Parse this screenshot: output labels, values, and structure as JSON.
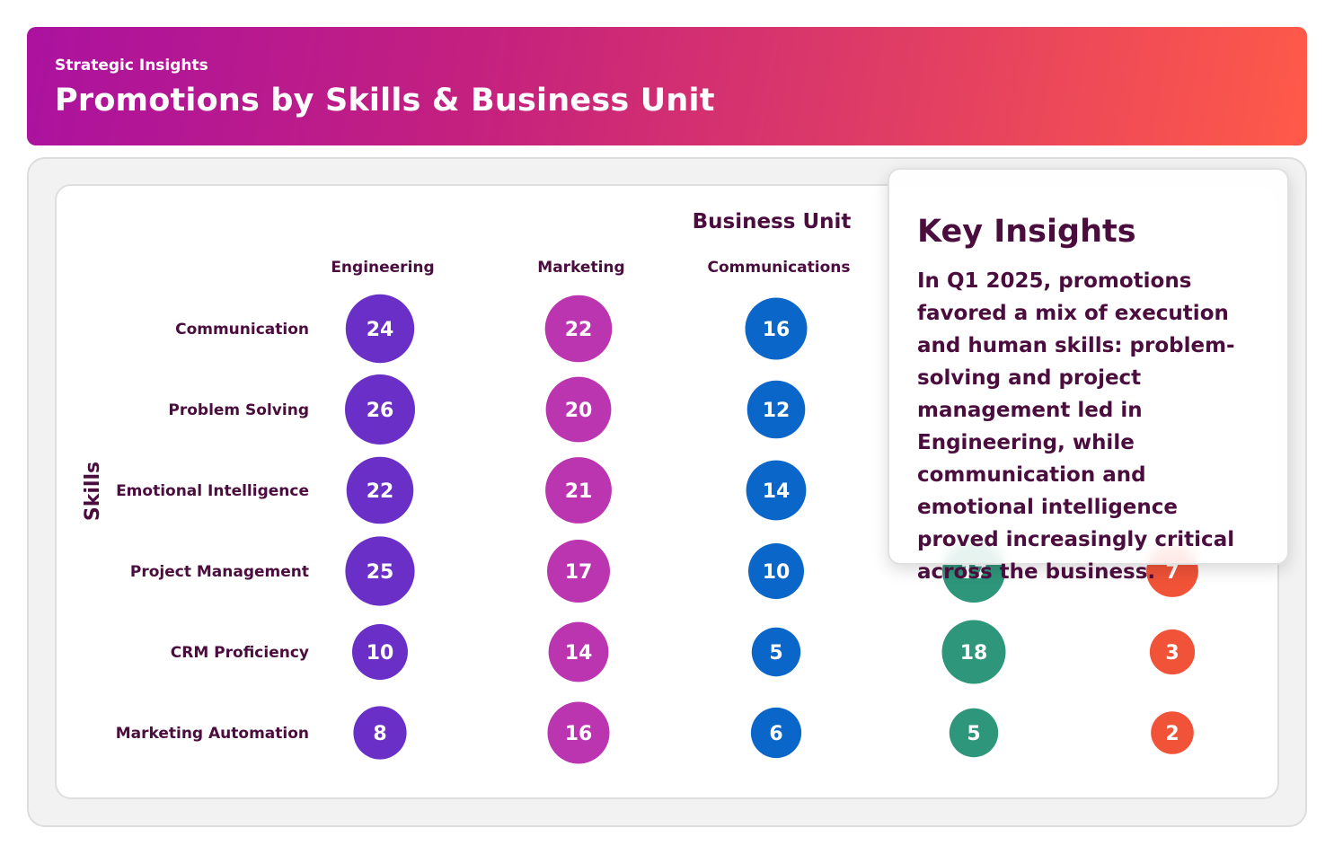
{
  "header": {
    "eyebrow": "Strategic Insights",
    "title": "Promotions by Skills & Business Unit"
  },
  "insight": {
    "title": "Key Insights",
    "text": "In Q1 2025, promotions favored a mix of execution and human skills: problem-solving and project management led in Engineering, while communication and emotional intelligence proved increasingly critical across the business."
  },
  "colors": {
    "engineering": "#6a2fc6",
    "marketing": "#bb35b0",
    "communications": "#0a66c8",
    "unit4": "#2e967a",
    "unit5": "#f05338",
    "text_dark": "#4a0d3e"
  },
  "chart_data": {
    "type": "bubble-matrix",
    "xlabel": "Business Unit",
    "ylabel": "Skills",
    "categories": [
      "Engineering",
      "Marketing",
      "Communications",
      "",
      ""
    ],
    "rows": [
      "Communication",
      "Problem Solving",
      "Emotional Intelligence",
      "Project Management",
      "CRM Proficiency",
      "Marketing Automation"
    ],
    "series": [
      {
        "name": "Engineering",
        "values": [
          24,
          26,
          22,
          25,
          10,
          8
        ]
      },
      {
        "name": "Marketing",
        "values": [
          22,
          20,
          21,
          17,
          14,
          16
        ]
      },
      {
        "name": "Communications",
        "values": [
          16,
          12,
          14,
          10,
          5,
          6
        ]
      },
      {
        "values": [
          null,
          null,
          null,
          17,
          18,
          5
        ]
      },
      {
        "values": [
          null,
          null,
          null,
          7,
          3,
          2
        ]
      }
    ]
  }
}
